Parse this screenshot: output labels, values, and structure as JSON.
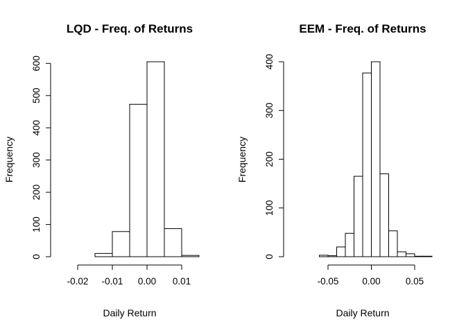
{
  "chart_data": [
    {
      "type": "histogram",
      "title": "LQD - Freq. of Returns",
      "xlabel": "Daily Return",
      "ylabel": "Frequency",
      "bins": [
        {
          "from": -0.025,
          "to": -0.02,
          "count": 0
        },
        {
          "from": -0.02,
          "to": -0.015,
          "count": 0
        },
        {
          "from": -0.015,
          "to": -0.01,
          "count": 10
        },
        {
          "from": -0.01,
          "to": -0.005,
          "count": 78
        },
        {
          "from": -0.005,
          "to": 0.0,
          "count": 473
        },
        {
          "from": 0.0,
          "to": 0.005,
          "count": 605
        },
        {
          "from": 0.005,
          "to": 0.01,
          "count": 87
        },
        {
          "from": 0.01,
          "to": 0.015,
          "count": 4
        }
      ],
      "xlim": [
        -0.025,
        0.015
      ],
      "ylim": [
        0,
        605
      ],
      "x_ticks": [
        -0.02,
        -0.01,
        0.0,
        0.01
      ],
      "x_tick_labels": [
        "-0.02",
        "-0.01",
        "0.00",
        "0.01"
      ],
      "y_ticks": [
        0,
        100,
        200,
        300,
        400,
        500,
        600
      ],
      "y_tick_labels": [
        "0",
        "100",
        "200",
        "300",
        "400",
        "500",
        "600"
      ],
      "grid": false,
      "legend": "none"
    },
    {
      "type": "histogram",
      "title": "EEM - Freq. of Returns",
      "xlabel": "Daily Return",
      "ylabel": "Frequency",
      "bins": [
        {
          "from": -0.09,
          "to": -0.08,
          "count": 0
        },
        {
          "from": -0.08,
          "to": -0.07,
          "count": 0
        },
        {
          "from": -0.07,
          "to": -0.06,
          "count": 0
        },
        {
          "from": -0.06,
          "to": -0.05,
          "count": 3
        },
        {
          "from": -0.05,
          "to": -0.04,
          "count": 2
        },
        {
          "from": -0.04,
          "to": -0.03,
          "count": 20
        },
        {
          "from": -0.03,
          "to": -0.02,
          "count": 48
        },
        {
          "from": -0.02,
          "to": -0.01,
          "count": 165
        },
        {
          "from": -0.01,
          "to": 0.0,
          "count": 377
        },
        {
          "from": 0.0,
          "to": 0.01,
          "count": 400
        },
        {
          "from": 0.01,
          "to": 0.02,
          "count": 170
        },
        {
          "from": 0.02,
          "to": 0.03,
          "count": 53
        },
        {
          "from": 0.03,
          "to": 0.04,
          "count": 10
        },
        {
          "from": 0.04,
          "to": 0.05,
          "count": 6
        },
        {
          "from": 0.05,
          "to": 0.06,
          "count": 1
        },
        {
          "from": 0.06,
          "to": 0.07,
          "count": 1
        }
      ],
      "xlim": [
        -0.09,
        0.07
      ],
      "ylim": [
        0,
        400
      ],
      "x_ticks": [
        -0.05,
        0.0,
        0.05
      ],
      "x_tick_labels": [
        "-0.05",
        "0.00",
        "0.05"
      ],
      "y_ticks": [
        0,
        100,
        200,
        300,
        400
      ],
      "y_tick_labels": [
        "0",
        "100",
        "200",
        "300",
        "400"
      ],
      "grid": false,
      "legend": "none"
    }
  ]
}
